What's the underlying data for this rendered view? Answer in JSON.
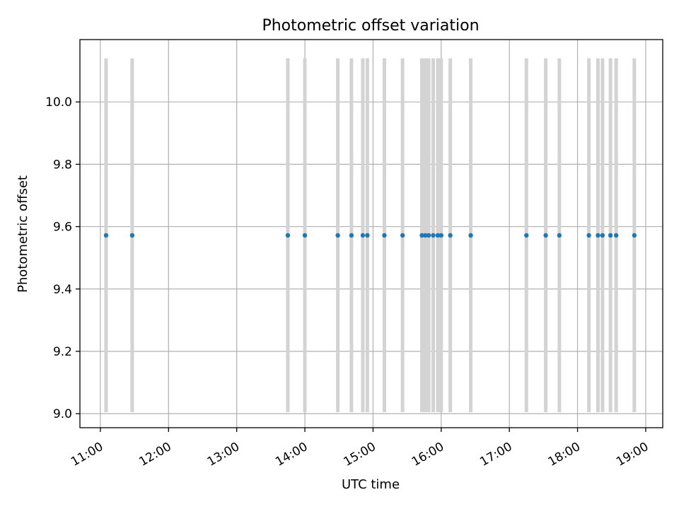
{
  "chart_data": {
    "type": "scatter",
    "title": "Photometric offset variation",
    "xlabel": "UTC time",
    "ylabel": "Photometric offset",
    "grid": true,
    "xlim_hours": [
      10.7,
      19.25
    ],
    "ylim": [
      8.955,
      10.2
    ],
    "x_ticks": [
      {
        "value": 11,
        "label": "11:00"
      },
      {
        "value": 12,
        "label": "12:00"
      },
      {
        "value": 13,
        "label": "13:00"
      },
      {
        "value": 14,
        "label": "14:00"
      },
      {
        "value": 15,
        "label": "15:00"
      },
      {
        "value": 16,
        "label": "16:00"
      },
      {
        "value": 17,
        "label": "17:00"
      },
      {
        "value": 18,
        "label": "18:00"
      },
      {
        "value": 19,
        "label": "19:00"
      }
    ],
    "y_ticks": [
      {
        "value": 9.0,
        "label": "9.0"
      },
      {
        "value": 9.2,
        "label": "9.2"
      },
      {
        "value": 9.4,
        "label": "9.4"
      },
      {
        "value": 9.6,
        "label": "9.6"
      },
      {
        "value": 9.8,
        "label": "9.8"
      },
      {
        "value": 10.0,
        "label": "10.0"
      }
    ],
    "colors": {
      "points": "#1f77b4",
      "error_bars": "#d3d3d3",
      "grid": "#b0b0b0"
    },
    "series": [
      {
        "x": [
          "11:05",
          "11:28",
          "13:45",
          "14:00",
          "14:29",
          "14:41",
          "14:51",
          "14:55",
          "15:10",
          "15:26",
          "15:43",
          "15:46",
          "15:49",
          "15:53",
          "15:57",
          "16:00",
          "16:08",
          "16:26",
          "17:15",
          "17:32",
          "17:44",
          "18:10",
          "18:18",
          "18:22",
          "18:29",
          "18:34",
          "18:50"
        ],
        "y": [
          9.572,
          9.572,
          9.572,
          9.572,
          9.572,
          9.572,
          9.572,
          9.572,
          9.572,
          9.572,
          9.572,
          9.572,
          9.572,
          9.572,
          9.572,
          9.572,
          9.572,
          9.572,
          9.572,
          9.572,
          9.572,
          9.572,
          9.572,
          9.572,
          9.572,
          9.572,
          9.572
        ],
        "y_err_low": 9.005,
        "y_err_high": 10.14
      }
    ]
  }
}
